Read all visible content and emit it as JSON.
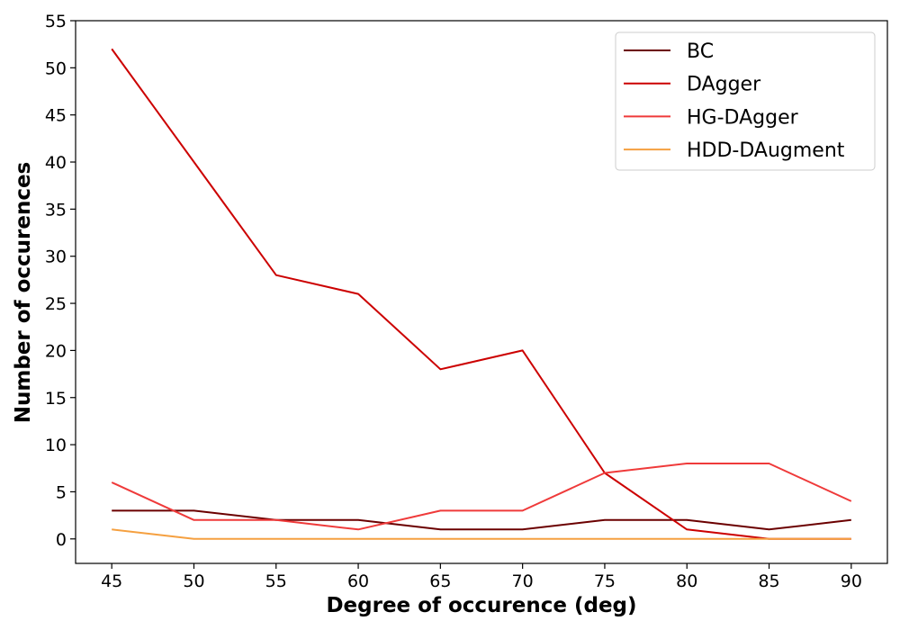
{
  "chart_data": {
    "type": "line",
    "xlabel": "Degree of occurence (deg)",
    "ylabel": "Number of occurences",
    "x": [
      45,
      50,
      55,
      60,
      65,
      70,
      75,
      80,
      85,
      90
    ],
    "x_ticks": [
      "45",
      "50",
      "55",
      "60",
      "65",
      "70",
      "75",
      "80",
      "85",
      "90"
    ],
    "y_ticks": [
      "0",
      "5",
      "10",
      "15",
      "20",
      "25",
      "30",
      "35",
      "40",
      "45",
      "50",
      "55"
    ],
    "xlim": [
      42.8,
      92.2
    ],
    "ylim": [
      -2.6,
      55
    ],
    "grid": false,
    "legend_position": "top-right",
    "series": [
      {
        "name": "BC",
        "color": "#6b0000",
        "values": [
          3,
          3,
          2,
          2,
          1,
          1,
          2,
          2,
          1,
          2
        ]
      },
      {
        "name": "DAgger",
        "color": "#cc0000",
        "values": [
          52,
          40,
          28,
          26,
          18,
          20,
          7,
          1,
          0,
          0
        ]
      },
      {
        "name": "HG-DAgger",
        "color": "#ef3a3a",
        "values": [
          6,
          2,
          2,
          1,
          3,
          3,
          7,
          8,
          8,
          4
        ]
      },
      {
        "name": "HDD-DAugment",
        "color": "#f5a040",
        "values": [
          1,
          0,
          0,
          0,
          0,
          0,
          0,
          0,
          0,
          0
        ]
      }
    ]
  }
}
